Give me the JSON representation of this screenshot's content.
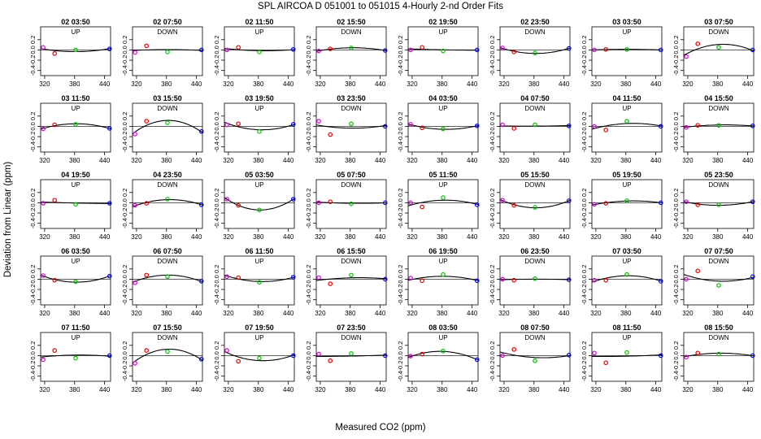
{
  "chart_data": {
    "type": "scatter",
    "title": "SPL   AIRCOA D   051001 to 051015  4-Hourly 2-nd Order Fits",
    "xlabel": "Measured CO2 (ppm)",
    "ylabel": "Deviation from Linear (ppm)",
    "xlim": [
      312,
      452
    ],
    "ylim": [
      -0.5,
      0.45
    ],
    "xticks": [
      "320",
      "380",
      "440"
    ],
    "yticks": [
      "-0.4",
      "-0.2",
      "0.0",
      "0.2"
    ],
    "point_x": [
      317,
      340,
      382,
      450
    ],
    "point_colors": [
      "#d000d0",
      "#e00000",
      "#00c000",
      "#0000e0"
    ],
    "panels": [
      {
        "title": "02 03:50",
        "dir": "UP",
        "values": [
          0.05,
          -0.07,
          0.0,
          0.02
        ]
      },
      {
        "title": "02 07:50",
        "dir": "DOWN",
        "values": [
          -0.05,
          0.08,
          -0.04,
          0.0
        ]
      },
      {
        "title": "02 11:50",
        "dir": "UP",
        "values": [
          0.0,
          0.05,
          -0.04,
          0.01
        ]
      },
      {
        "title": "02 15:50",
        "dir": "DOWN",
        "values": [
          -0.02,
          0.02,
          0.04,
          -0.01
        ]
      },
      {
        "title": "02 19:50",
        "dir": "UP",
        "values": [
          0.0,
          0.05,
          -0.02,
          0.0
        ]
      },
      {
        "title": "02 23:50",
        "dir": "DOWN",
        "values": [
          0.04,
          -0.04,
          -0.06,
          0.03
        ]
      },
      {
        "title": "03 03:50",
        "dir": "UP",
        "values": [
          0.0,
          0.01,
          0.01,
          0.0
        ]
      },
      {
        "title": "03 07:50",
        "dir": "DOWN",
        "values": [
          -0.13,
          0.12,
          0.05,
          0.0
        ]
      },
      {
        "title": "03 11:50",
        "dir": "UP",
        "values": [
          -0.05,
          0.03,
          0.04,
          -0.04
        ]
      },
      {
        "title": "03 15:50",
        "dir": "DOWN",
        "values": [
          -0.15,
          0.1,
          0.07,
          -0.1
        ]
      },
      {
        "title": "03 19:50",
        "dir": "UP",
        "values": [
          0.03,
          0.05,
          -0.1,
          0.04
        ]
      },
      {
        "title": "03 23:50",
        "dir": "DOWN",
        "values": [
          0.1,
          -0.16,
          0.05,
          0.0
        ]
      },
      {
        "title": "04 03:50",
        "dir": "UP",
        "values": [
          0.04,
          -0.03,
          -0.05,
          0.01
        ]
      },
      {
        "title": "04 07:50",
        "dir": "DOWN",
        "values": [
          0.03,
          -0.04,
          0.03,
          0.01
        ]
      },
      {
        "title": "04 11:50",
        "dir": "UP",
        "values": [
          0.0,
          -0.07,
          0.1,
          0.0
        ]
      },
      {
        "title": "04 15:50",
        "dir": "DOWN",
        "values": [
          -0.02,
          0.02,
          0.02,
          0.01
        ]
      },
      {
        "title": "04 19:50",
        "dir": "UP",
        "values": [
          -0.01,
          0.05,
          -0.03,
          -0.01
        ]
      },
      {
        "title": "04 23:50",
        "dir": "DOWN",
        "values": [
          -0.05,
          -0.01,
          0.07,
          -0.04
        ]
      },
      {
        "title": "05 03:50",
        "dir": "UP",
        "values": [
          0.07,
          -0.05,
          -0.14,
          0.07
        ]
      },
      {
        "title": "05 07:50",
        "dir": "DOWN",
        "values": [
          0.0,
          0.02,
          -0.02,
          0.0
        ]
      },
      {
        "title": "05 11:50",
        "dir": "UP",
        "values": [
          0.0,
          -0.08,
          0.1,
          -0.04
        ]
      },
      {
        "title": "05 15:50",
        "dir": "DOWN",
        "values": [
          0.05,
          -0.05,
          -0.09,
          0.04
        ]
      },
      {
        "title": "05 19:50",
        "dir": "UP",
        "values": [
          -0.03,
          -0.01,
          0.04,
          0.0
        ]
      },
      {
        "title": "05 23:50",
        "dir": "DOWN",
        "values": [
          0.02,
          -0.04,
          -0.04,
          0.02
        ]
      },
      {
        "title": "06 03:50",
        "dir": "UP",
        "values": [
          0.07,
          -0.02,
          -0.05,
          0.06
        ]
      },
      {
        "title": "06 07:50",
        "dir": "DOWN",
        "values": [
          -0.07,
          0.08,
          0.05,
          -0.04
        ]
      },
      {
        "title": "06 11:50",
        "dir": "UP",
        "values": [
          0.05,
          0.03,
          -0.06,
          0.04
        ]
      },
      {
        "title": "06 15:50",
        "dir": "DOWN",
        "values": [
          0.03,
          -0.09,
          0.08,
          0.0
        ]
      },
      {
        "title": "06 19:50",
        "dir": "UP",
        "values": [
          0.02,
          -0.03,
          0.09,
          -0.03
        ]
      },
      {
        "title": "06 23:50",
        "dir": "DOWN",
        "values": [
          0.0,
          -0.02,
          0.01,
          -0.01
        ]
      },
      {
        "title": "07 03:50",
        "dir": "UP",
        "values": [
          -0.02,
          -0.02,
          0.09,
          -0.04
        ]
      },
      {
        "title": "07 07:50",
        "dir": "DOWN",
        "values": [
          0.0,
          0.16,
          -0.12,
          0.05
        ]
      },
      {
        "title": "07 11:50",
        "dir": "UP",
        "values": [
          -0.08,
          0.1,
          -0.05,
          0.0
        ]
      },
      {
        "title": "07 15:50",
        "dir": "DOWN",
        "values": [
          -0.15,
          0.1,
          0.08,
          -0.07
        ]
      },
      {
        "title": "07 19:50",
        "dir": "UP",
        "values": [
          0.1,
          -0.11,
          -0.05,
          0.0
        ]
      },
      {
        "title": "07 23:50",
        "dir": "DOWN",
        "values": [
          0.03,
          -0.1,
          0.04,
          0.0
        ]
      },
      {
        "title": "08 03:50",
        "dir": "UP",
        "values": [
          -0.01,
          0.03,
          0.09,
          -0.08
        ]
      },
      {
        "title": "08 07:50",
        "dir": "DOWN",
        "values": [
          0.0,
          0.12,
          -0.1,
          0.01
        ]
      },
      {
        "title": "08 11:50",
        "dir": "UP",
        "values": [
          0.05,
          -0.14,
          0.06,
          0.0
        ]
      },
      {
        "title": "08 15:50",
        "dir": "DOWN",
        "values": [
          -0.03,
          0.05,
          0.03,
          0.0
        ]
      }
    ]
  }
}
